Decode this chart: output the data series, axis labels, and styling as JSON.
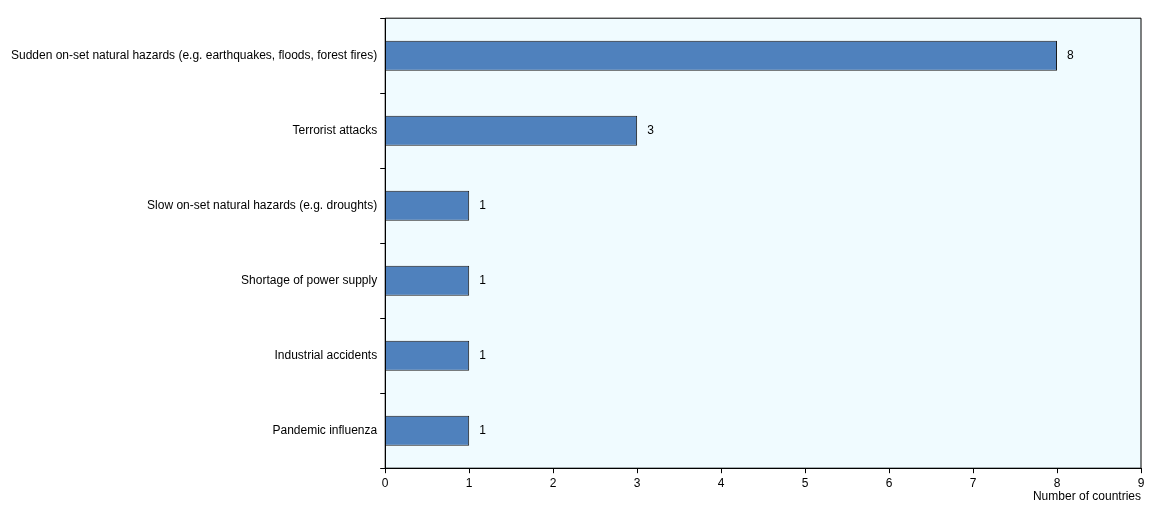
{
  "chart_data": {
    "type": "bar",
    "orientation": "horizontal",
    "xlabel": "Number of countries",
    "categories": [
      "Sudden on-set natural hazards (e.g. earthquakes, floods, forest fires)",
      "Terrorist attacks",
      "Slow on-set natural hazards (e.g. droughts)",
      "Shortage of power supply",
      "Industrial accidents",
      "Pandemic influenza"
    ],
    "values": [
      8,
      3,
      1,
      1,
      1,
      1
    ],
    "color": "#4f81bd",
    "xlim": [
      0,
      9
    ],
    "xticks": [
      0,
      1,
      2,
      3,
      4,
      5,
      6,
      7,
      8,
      9
    ],
    "grid": false,
    "legend": false,
    "data_labels": true
  }
}
